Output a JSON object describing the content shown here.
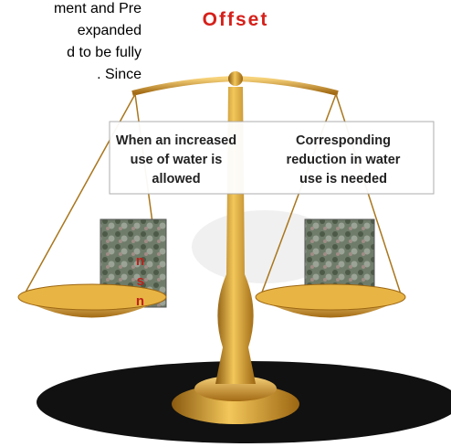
{
  "intro_text": [
    "ment and Pre",
    "expanded",
    "d to be fully",
    ". Since"
  ],
  "title": "Offset",
  "side_note": [
    "n",
    "s",
    "n"
  ],
  "left_label": [
    "When an increased",
    "use of water is",
    "allowed"
  ],
  "right_label": [
    "Corresponding",
    "reduction in water",
    "use is needed"
  ]
}
